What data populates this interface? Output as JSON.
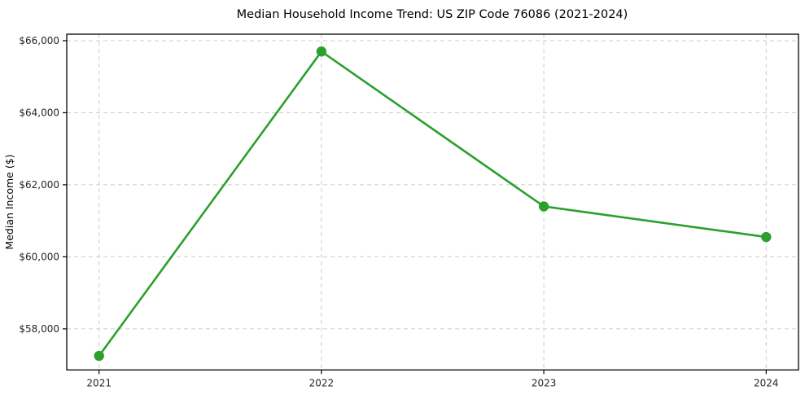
{
  "page": {
    "background_color": "#ffffff"
  },
  "chart_data": {
    "type": "line",
    "title": "Median Household Income Trend: US ZIP Code 76086 (2021-2024)",
    "xlabel": "",
    "ylabel": "Median Income ($)",
    "x": [
      2021,
      2022,
      2023,
      2024
    ],
    "x_tick_labels": [
      "2021",
      "2022",
      "2023",
      "2024"
    ],
    "series": [
      {
        "name": "Median Household Income",
        "values": [
          57250,
          65700,
          61400,
          60550
        ]
      }
    ],
    "y_ticks": [
      58000,
      60000,
      62000,
      64000,
      66000
    ],
    "y_tick_labels": [
      "$58,000",
      "$60,000",
      "$62,000",
      "$64,000",
      "$66,000"
    ],
    "ylim": [
      56860,
      66180
    ],
    "grid": true,
    "grid_style": "dashed",
    "legend_position": "none",
    "colors": {
      "line": "#2ca02c",
      "marker": "#2ca02c",
      "grid": "#cccccc",
      "spine": "#000000",
      "tick": "#000000"
    }
  }
}
